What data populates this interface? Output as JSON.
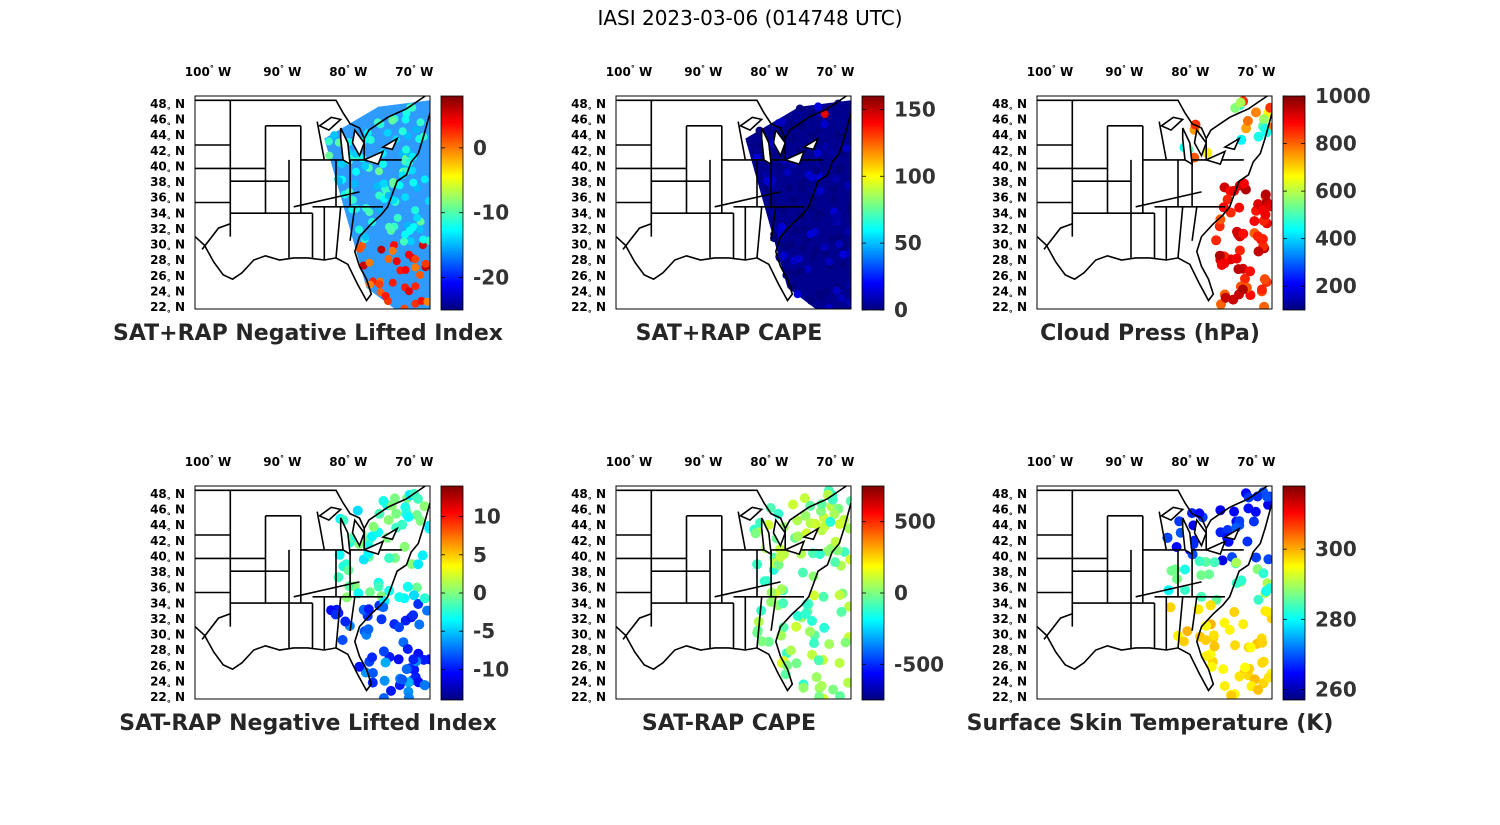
{
  "figure": {
    "title": "IASI 2023-03-06 (014748 UTC)"
  },
  "map_axes": {
    "lon_ticks": [
      "100",
      "90",
      "80",
      "70"
    ],
    "lon_hemisphere": "W",
    "lat_ticks": [
      "48",
      "46",
      "44",
      "42",
      "40",
      "38",
      "36",
      "34",
      "32",
      "30",
      "28",
      "26",
      "24",
      "22"
    ],
    "lat_hemisphere": "N",
    "degree_symbol": "°"
  },
  "colors": {
    "jet": [
      "#00007f",
      "#0000ff",
      "#007fff",
      "#00ffff",
      "#7fff7f",
      "#ffff00",
      "#ff7f00",
      "#ff0000",
      "#7f0000"
    ],
    "outline": "#000000"
  },
  "panels": [
    {
      "id": "p1",
      "title": "SAT+RAP Negative Lifted Index",
      "colorbar": {
        "min": -25,
        "max": 8,
        "tick_labels": [
          "0",
          "-10",
          "-20"
        ],
        "tick_values": [
          0,
          -10,
          -20
        ]
      },
      "coverage": "swath",
      "dominant_color": "#2f9bff"
    },
    {
      "id": "p2",
      "title": "SAT+RAP CAPE",
      "colorbar": {
        "min": 0,
        "max": 160,
        "tick_labels": [
          "150",
          "100",
          "50",
          "0"
        ],
        "tick_values": [
          150,
          100,
          50,
          0
        ]
      },
      "coverage": "swath",
      "dominant_color": "#00008f"
    },
    {
      "id": "p3",
      "title": "Cloud Press (hPa)",
      "colorbar": {
        "min": 100,
        "max": 1000,
        "tick_labels": [
          "1000",
          "800",
          "600",
          "400",
          "200"
        ],
        "tick_values": [
          1000,
          800,
          600,
          400,
          200
        ]
      },
      "coverage": "patchy",
      "dominant_color": "#ff6a00"
    },
    {
      "id": "p4",
      "title": "SAT-RAP Negative Lifted Index",
      "colorbar": {
        "min": -14,
        "max": 14,
        "tick_labels": [
          "10",
          "5",
          "0",
          "-5",
          "-10"
        ],
        "tick_values": [
          10,
          5,
          0,
          -5,
          -10
        ]
      },
      "coverage": "partial",
      "dominant_color": "#3fc9ff"
    },
    {
      "id": "p5",
      "title": "SAT-RAP CAPE",
      "colorbar": {
        "min": -750,
        "max": 750,
        "tick_labels": [
          "500",
          "0",
          "-500"
        ],
        "tick_values": [
          500,
          0,
          -500
        ]
      },
      "coverage": "partial",
      "dominant_color": "#8dff75"
    },
    {
      "id": "p6",
      "title": "Surface Skin Temperature (K)",
      "colorbar": {
        "min": 257,
        "max": 318,
        "tick_labels": [
          "300",
          "280",
          "260"
        ],
        "tick_values": [
          300,
          280,
          260
        ]
      },
      "coverage": "partial",
      "dominant_color": "#f0e83a"
    }
  ]
}
